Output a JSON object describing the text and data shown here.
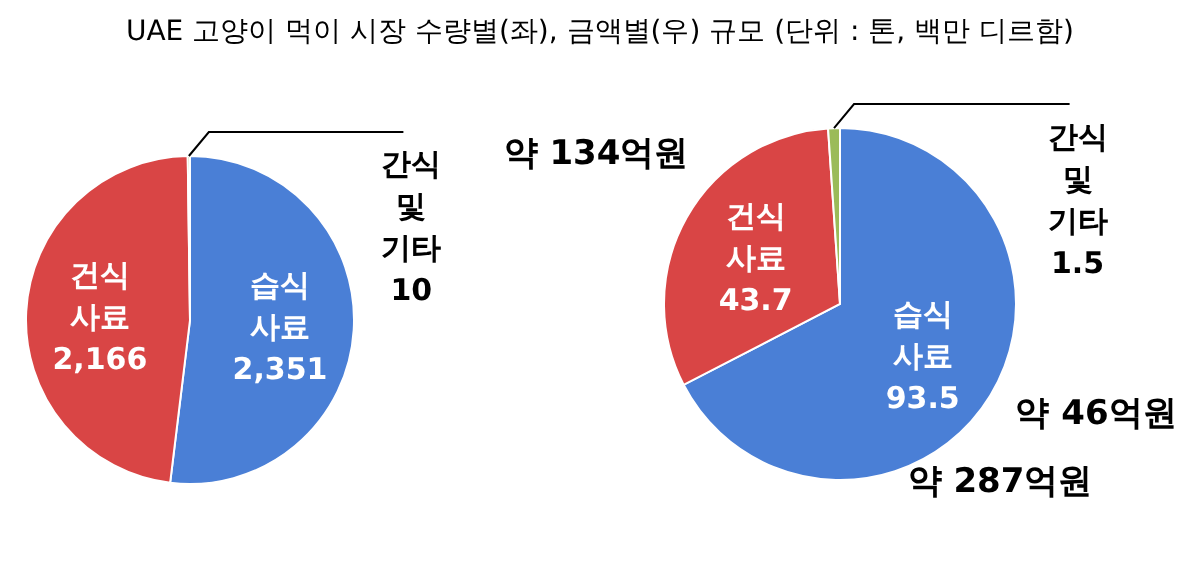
{
  "chart_data": [
    {
      "type": "pie",
      "title": "UAE 고양이 먹이 시장 수량별(좌), 금액별(우) 규모 (단위 : 톤, 백만 디르함)",
      "categories": [
        "습식 사료",
        "건식 사료",
        "간식 및 기타"
      ],
      "values": [
        2351,
        2166,
        10
      ],
      "value_labels": [
        "2,351",
        "2,166",
        "10"
      ],
      "colors": [
        "#4a7fd6",
        "#d94545",
        "#9bbb59"
      ]
    },
    {
      "type": "pie",
      "categories": [
        "습식 사료",
        "건식 사료",
        "간식 및 기타"
      ],
      "values": [
        93.5,
        43.7,
        1.5
      ],
      "colors": [
        "#4a7fd6",
        "#d94545",
        "#9bbb59"
      ],
      "data_labels": true,
      "annotations": [
        "약 134억원",
        "약 46억원",
        "약 287억원"
      ]
    }
  ]
}
